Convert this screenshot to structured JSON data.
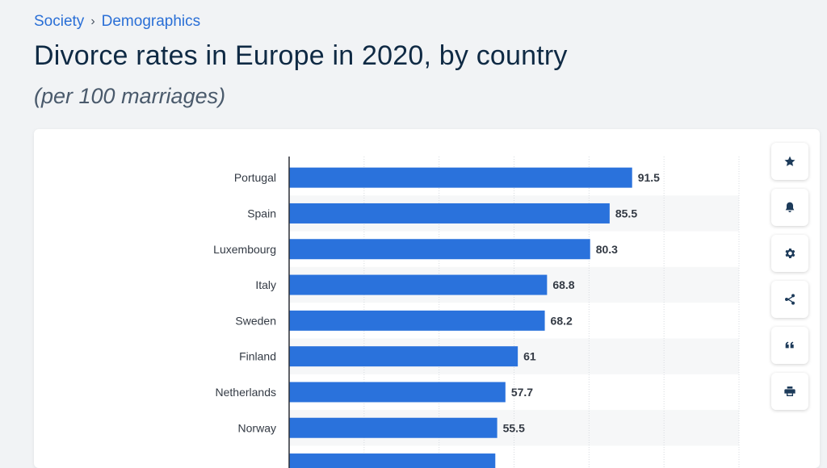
{
  "breadcrumb": {
    "items": [
      "Society",
      "Demographics"
    ],
    "separator": "›"
  },
  "header": {
    "title": "Divorce rates in Europe in 2020, by country",
    "subtitle": "(per 100 marriages)"
  },
  "actions": [
    "star-icon",
    "bell-icon",
    "gear-icon",
    "share-icon",
    "quote-icon",
    "print-icon"
  ],
  "colors": {
    "bar": "#2a72dc",
    "link": "#2a6fd6",
    "title": "#0f2a44",
    "band": "#f6f7f8"
  },
  "chart_data": {
    "type": "bar",
    "orientation": "horizontal",
    "categories": [
      "Portugal",
      "Spain",
      "Luxembourg",
      "Italy",
      "Sweden",
      "Finland",
      "Netherlands",
      "Norway"
    ],
    "values": [
      91.5,
      85.5,
      80.3,
      68.8,
      68.2,
      61,
      57.7,
      55.5
    ],
    "value_labels": [
      "91.5",
      "85.5",
      "80.3",
      "68.8",
      "68.2",
      "61",
      "57.7",
      "55.5"
    ],
    "xlim": [
      0,
      120
    ],
    "grid": true
  }
}
